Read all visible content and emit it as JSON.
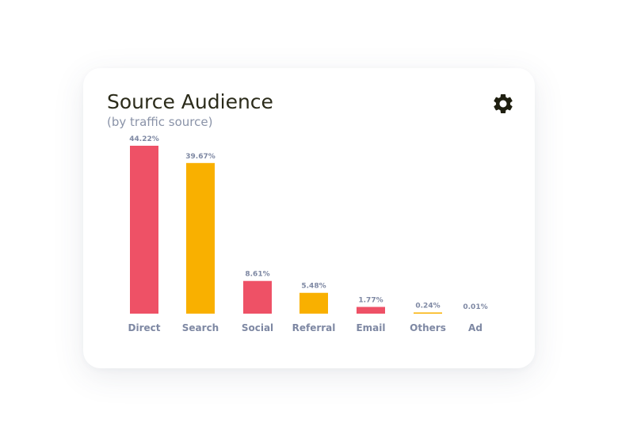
{
  "card": {
    "title": "Source Audience",
    "subtitle": "(by traffic source)",
    "settings_icon": "gear-icon"
  },
  "colors": {
    "primary": "#ee5166",
    "secondary": "#f9b000"
  },
  "chart_data": {
    "type": "bar",
    "title": "Source Audience",
    "subtitle": "(by traffic source)",
    "categories": [
      "Direct",
      "Search",
      "Social",
      "Referral",
      "Email",
      "Others",
      "Ad"
    ],
    "values": [
      44.22,
      39.67,
      8.61,
      5.48,
      1.77,
      0.24,
      0.01
    ],
    "value_labels": [
      "44.22%",
      "39.67%",
      "8.61%",
      "5.48%",
      "1.77%",
      "0.24%",
      "0.01%"
    ],
    "bar_colors": [
      "#ee5166",
      "#f9b000",
      "#ee5166",
      "#f9b000",
      "#ee5166",
      "#f9b000",
      "#ee5166"
    ],
    "xlabel": "",
    "ylabel": "",
    "ylim": [
      0,
      44.22
    ],
    "grid": false,
    "legend": "none"
  }
}
